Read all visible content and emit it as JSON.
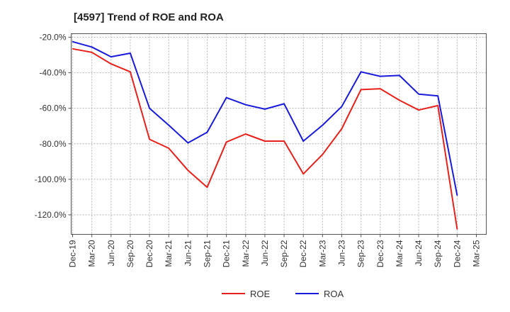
{
  "chart_data": {
    "type": "line",
    "title": "[4597]  Trend of ROE and ROA",
    "x": [
      "Dec-19",
      "Mar-20",
      "Jun-20",
      "Sep-20",
      "Dec-20",
      "Mar-21",
      "Jun-21",
      "Sep-21",
      "Dec-21",
      "Mar-22",
      "Jun-22",
      "Sep-22",
      "Dec-22",
      "Mar-23",
      "Jun-23",
      "Sep-23",
      "Dec-23",
      "Mar-24",
      "Jun-24",
      "Sep-24",
      "Dec-24",
      "Mar-25"
    ],
    "x_tick_labels": [
      "Dec-19",
      "Mar-20",
      "Jun-20",
      "Sep-20",
      "Dec-20",
      "Mar-21",
      "Jun-21",
      "Sep-21",
      "Dec-21",
      "Mar-22",
      "Jun-22",
      "Sep-22",
      "Dec-22",
      "Mar-23",
      "Jun-23",
      "Sep-23",
      "Dec-23",
      "Mar-24",
      "Jun-24",
      "Sep-24",
      "Dec-24",
      "Mar-25"
    ],
    "y_tick_labels": [
      "-20.0%",
      "-40.0%",
      "-60.0%",
      "-80.0%",
      "-100.0%",
      "-120.0%"
    ],
    "y_tick_values": [
      -20,
      -40,
      -60,
      -80,
      -100,
      -120
    ],
    "ylim": [
      -131,
      -18
    ],
    "grid": true,
    "legend_position": "bottom-center",
    "series": [
      {
        "name": "ROE",
        "color": "#e8211d",
        "values": [
          -26.5,
          -28.5,
          -35,
          -39.5,
          -77.5,
          -82.5,
          -95,
          -104.5,
          -79,
          -74.5,
          -78.5,
          -78.5,
          -97,
          -86,
          -71.5,
          -49.5,
          -49,
          -55.5,
          -61,
          -58.5,
          -128,
          null
        ]
      },
      {
        "name": "ROA",
        "color": "#1a1adb",
        "values": [
          -22.5,
          -25.5,
          -31,
          -29,
          -60,
          -69.5,
          -79.5,
          -73.5,
          -54,
          -58,
          -60.5,
          -57.5,
          -78.5,
          -69.5,
          -59,
          -39.5,
          -42,
          -41.5,
          -52,
          -53,
          -109,
          null
        ]
      }
    ]
  }
}
